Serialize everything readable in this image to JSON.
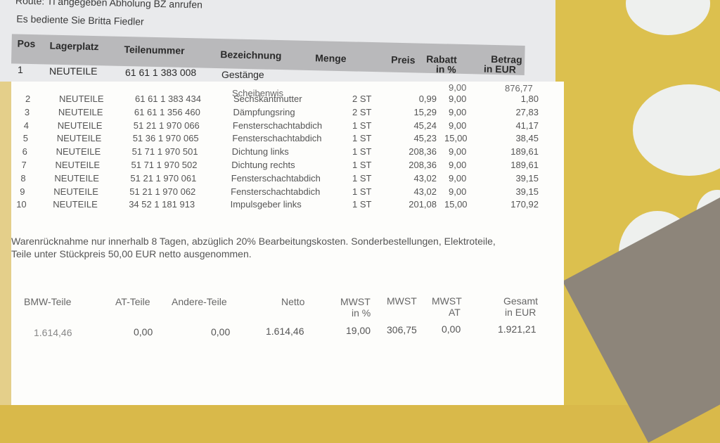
{
  "header": {
    "line1": "Route: Tl angegeben Abholung BZ anrufen",
    "line2": "Es bediente Sie Britta Fiedler"
  },
  "columns": {
    "pos": "Pos",
    "lagerplatz": "Lagerplatz",
    "teilenummer": "Teilenummer",
    "bezeichnung": "Bezeichnung",
    "menge": "Menge",
    "preis": "Preis",
    "rabatt": "Rabatt",
    "rabatt2": "in %",
    "betrag": "Betrag",
    "betrag2": "in EUR"
  },
  "row1": {
    "pos": "1",
    "lager": "NEUTEILE",
    "nr": "61 61 1 383 008",
    "bez": "Gestänge",
    "bez2": "Scheibenwis",
    "rabatt": "9,00",
    "betrag": "876,77"
  },
  "rows": [
    {
      "pos": "2",
      "lager": "NEUTEILE",
      "nr": "61 61 1 383 434",
      "bez": "Sechskantmutter",
      "menge": "2 ST",
      "preis": "0,99",
      "rabatt": "9,00",
      "betrag": "1,80"
    },
    {
      "pos": "3",
      "lager": "NEUTEILE",
      "nr": "61 61 1 356 460",
      "bez": "Dämpfungsring",
      "menge": "2 ST",
      "preis": "15,29",
      "rabatt": "9,00",
      "betrag": "27,83"
    },
    {
      "pos": "4",
      "lager": "NEUTEILE",
      "nr": "51 21 1 970 066",
      "bez": "Fensterschachtabdich",
      "menge": "1 ST",
      "preis": "45,24",
      "rabatt": "9,00",
      "betrag": "41,17"
    },
    {
      "pos": "5",
      "lager": "NEUTEILE",
      "nr": "51 36 1 970 065",
      "bez": "Fensterschachtabdich",
      "menge": "1 ST",
      "preis": "45,23",
      "rabatt": "15,00",
      "betrag": "38,45"
    },
    {
      "pos": "6",
      "lager": "NEUTEILE",
      "nr": "51 71 1 970 501",
      "bez": "Dichtung links",
      "menge": "1 ST",
      "preis": "208,36",
      "rabatt": "9,00",
      "betrag": "189,61"
    },
    {
      "pos": "7",
      "lager": "NEUTEILE",
      "nr": "51 71 1 970 502",
      "bez": "Dichtung rechts",
      "menge": "1 ST",
      "preis": "208,36",
      "rabatt": "9,00",
      "betrag": "189,61"
    },
    {
      "pos": "8",
      "lager": "NEUTEILE",
      "nr": "51 21 1 970 061",
      "bez": "Fensterschachtabdich",
      "menge": "1 ST",
      "preis": "43,02",
      "rabatt": "9,00",
      "betrag": "39,15"
    },
    {
      "pos": "9",
      "lager": "NEUTEILE",
      "nr": "51 21 1 970 062",
      "bez": "Fensterschachtabdich",
      "menge": "1 ST",
      "preis": "43,02",
      "rabatt": "9,00",
      "betrag": "39,15"
    },
    {
      "pos": "10",
      "lager": "NEUTEILE",
      "nr": "34 52 1 181 913",
      "bez": "Impulsgeber links",
      "menge": "1 ST",
      "preis": "201,08",
      "rabatt": "15,00",
      "betrag": "170,92"
    }
  ],
  "notice": {
    "line1": "Warenrücknahme nur innerhalb 8 Tagen, abzüglich 20% Bearbeitungskosten. Sonderbestellungen, Elektroteile,",
    "line2": "Teile unter Stückpreis 50,00 EUR netto ausgenommen."
  },
  "summary": {
    "headers": {
      "bmw": "BMW-Teile",
      "at": "AT-Teile",
      "andere": "Andere-Teile",
      "netto": "Netto",
      "mwst_pct": "MWST",
      "mwst_pct2": "in %",
      "mwst": "MWST",
      "mwst_at": "MWST",
      "mwst_at2": "AT",
      "gesamt": "Gesamt",
      "gesamt2": "in EUR"
    },
    "values": {
      "bmw": "1.614,46",
      "at": "0,00",
      "andere": "0,00",
      "netto": "1.614,46",
      "mwst_pct": "19,00",
      "mwst": "306,75",
      "mwst_at": "0,00",
      "gesamt": "1.921,21"
    }
  }
}
